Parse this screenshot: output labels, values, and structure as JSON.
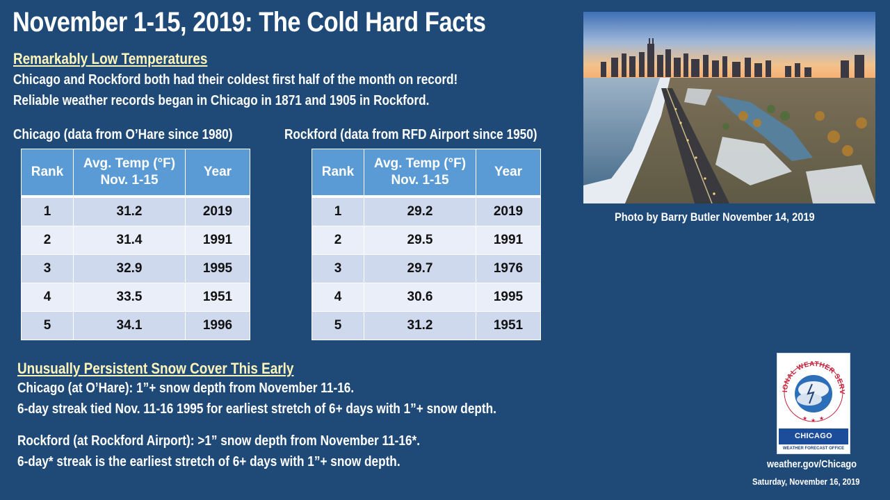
{
  "title": "November 1-15, 2019:  The Cold Hard Facts",
  "section1": {
    "heading": "Remarkably Low Temperatures",
    "line1": "Chicago and Rockford both had their coldest first half of the month on record!",
    "line2": "Reliable weather records began in Chicago in 1871 and 1905 in Rockford."
  },
  "chicago": {
    "caption": "Chicago (data from O’Hare since 1980)",
    "headers": {
      "rank": "Rank",
      "temp_line1": "Avg. Temp (°F)",
      "temp_line2": "Nov. 1-15",
      "year": "Year"
    },
    "rows": [
      {
        "rank": "1",
        "temp": "31.2",
        "year": "2019"
      },
      {
        "rank": "2",
        "temp": "31.4",
        "year": "1991"
      },
      {
        "rank": "3",
        "temp": "32.9",
        "year": "1995"
      },
      {
        "rank": "4",
        "temp": "33.5",
        "year": "1951"
      },
      {
        "rank": "5",
        "temp": "34.1",
        "year": "1996"
      }
    ]
  },
  "rockford": {
    "caption": "Rockford (data from RFD Airport since 1950)",
    "headers": {
      "rank": "Rank",
      "temp_line1": "Avg. Temp (°F)",
      "temp_line2": "Nov. 1-15",
      "year": "Year"
    },
    "rows": [
      {
        "rank": "1",
        "temp": "29.2",
        "year": "2019"
      },
      {
        "rank": "2",
        "temp": "29.5",
        "year": "1991"
      },
      {
        "rank": "3",
        "temp": "29.7",
        "year": "1976"
      },
      {
        "rank": "4",
        "temp": "30.6",
        "year": "1995"
      },
      {
        "rank": "5",
        "temp": "31.2",
        "year": "1951"
      }
    ]
  },
  "photo_caption": "Photo by Barry Butler November 14, 2019",
  "section2": {
    "heading": "Unusually Persistent Snow Cover This Early",
    "line1": "Chicago (at O’Hare): 1”+ snow depth from November 11-16.",
    "line2": "6-day streak tied Nov. 11-16 1995 for earliest stretch of 6+ days with 1”+ snow depth.",
    "line3": "Rockford (at Rockford Airport): >1” snow depth from November 11-16*.",
    "line4": "6-day* streak is the earliest stretch of 6+ days with 1”+ snow depth."
  },
  "logo": {
    "ring_text": "NATIONAL WEATHER SERVICE",
    "office": "CHICAGO",
    "subtitle": "WEATHER FORECAST OFFICE"
  },
  "website": "weather.gov/Chicago",
  "date": "Saturday, November 16, 2019",
  "colors": {
    "background": "#1f4a78",
    "table_header": "#5b9bd5",
    "row_odd": "#cfd9ee",
    "row_even": "#e9eef8",
    "heading_yellow": "#fff5b8"
  }
}
